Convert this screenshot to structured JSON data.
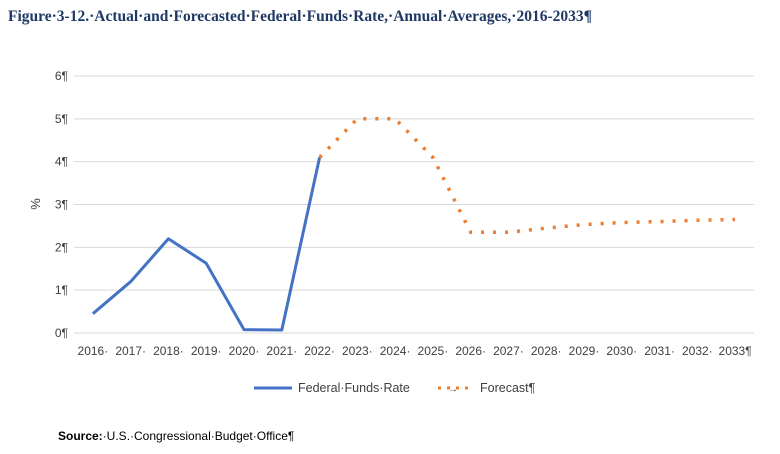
{
  "figure": {
    "title": "Figure·3-12.·Actual·and·Forecasted·Federal·Funds·Rate,·Annual·Averages,·2016-2033¶"
  },
  "source": {
    "label": "Source:",
    "text": "·U.S.·Congressional·Budget·Office¶"
  },
  "colors": {
    "actual": "#4472c4",
    "forecast": "#ed7d31",
    "grid": "#d9d9d9",
    "title": "#1f3864"
  },
  "chart_data": {
    "type": "line",
    "title": "",
    "xlabel": "",
    "ylabel": "%",
    "ylim": [
      0,
      6
    ],
    "grid": true,
    "legend_position": "bottom",
    "x": [
      2016,
      2017,
      2018,
      2019,
      2020,
      2021,
      2022,
      2023,
      2024,
      2025,
      2026,
      2027,
      2028,
      2029,
      2030,
      2031,
      2032,
      2033
    ],
    "x_tick_labels": [
      "2016·",
      "2017·",
      "2018·",
      "2019·",
      "2020·",
      "2021·",
      "2022·",
      "2023·",
      "2024·",
      "2025·",
      "2026·",
      "2027·",
      "2028·",
      "2029·",
      "2030·",
      "2031·",
      "2032·",
      "2033¶"
    ],
    "y_ticks": [
      0,
      1,
      2,
      3,
      4,
      5,
      6
    ],
    "y_tick_labels": [
      "0¶",
      "1¶",
      "2¶",
      "3¶",
      "4¶",
      "5¶",
      "6¶"
    ],
    "series": [
      {
        "name": "Federal·Funds·Rate",
        "style": "solid",
        "x": [
          2016,
          2017,
          2018,
          2019,
          2020,
          2021,
          2022
        ],
        "values": [
          0.45,
          1.2,
          2.2,
          1.63,
          0.08,
          0.07,
          4.1
        ]
      },
      {
        "name": "Forecast¶",
        "legend_prefix": "→",
        "style": "dotted",
        "x": [
          2022,
          2023,
          2024,
          2025,
          2026,
          2027,
          2028,
          2029,
          2030,
          2031,
          2032,
          2033
        ],
        "values": [
          4.1,
          5.0,
          5.0,
          4.1,
          2.35,
          2.35,
          2.45,
          2.53,
          2.58,
          2.6,
          2.63,
          2.65
        ]
      }
    ]
  }
}
